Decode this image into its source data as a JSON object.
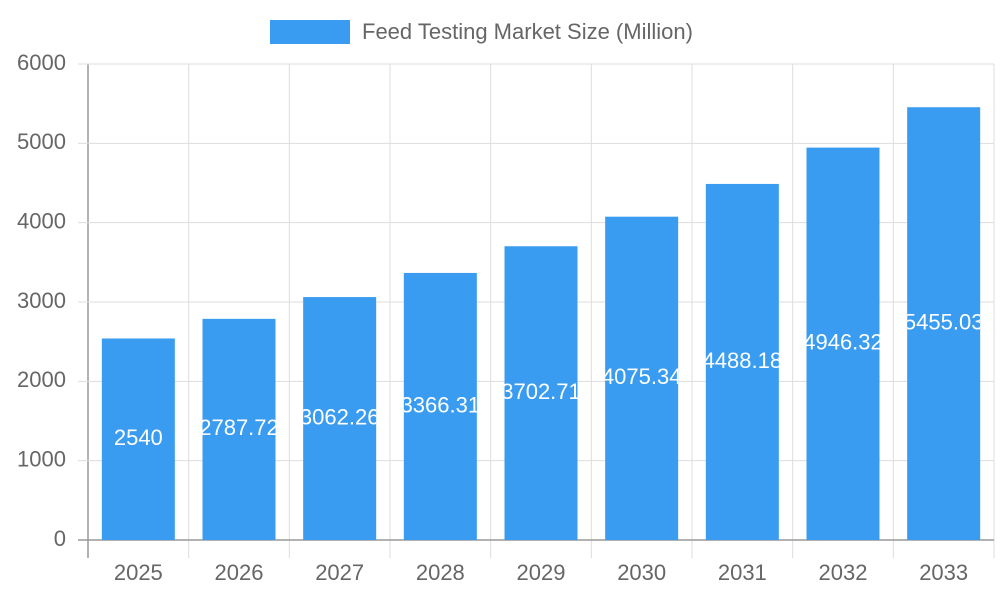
{
  "chart_data": {
    "type": "bar",
    "categories": [
      "2025",
      "2026",
      "2027",
      "2028",
      "2029",
      "2030",
      "2031",
      "2032",
      "2033"
    ],
    "series": [
      {
        "name": "Feed Testing Market Size (Million)",
        "color": "#399cf0",
        "values": [
          2540,
          2787.72,
          3062.26,
          3366.31,
          3702.71,
          4075.34,
          4488.18,
          4946.32,
          5455.03
        ]
      }
    ],
    "ylim": [
      0,
      6000
    ],
    "yticks": [
      0,
      1000,
      2000,
      3000,
      4000,
      5000,
      6000
    ],
    "grid": true,
    "legend": "top"
  }
}
